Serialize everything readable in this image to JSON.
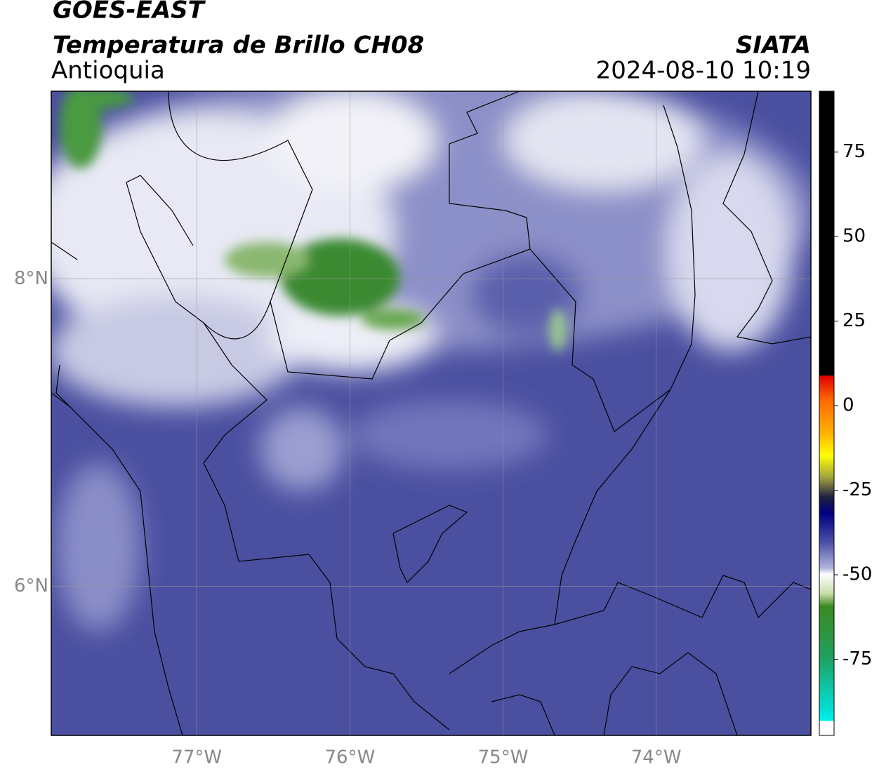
{
  "header": {
    "title": "GOES-EAST",
    "subtitle": "Temperatura de Brillo CH08",
    "region": "Antioquia",
    "source": "SIATA",
    "datetime": "2024-08-10 10:19"
  },
  "map": {
    "xlim": [
      -77.95,
      -72.99
    ],
    "ylim": [
      5.03,
      9.22
    ],
    "xticks": [
      {
        "value": -77,
        "label": "77°W"
      },
      {
        "value": -76,
        "label": "76°W"
      },
      {
        "value": -75,
        "label": "75°W"
      },
      {
        "value": -74,
        "label": "74°W"
      }
    ],
    "yticks": [
      {
        "value": 6,
        "label": "6°N"
      },
      {
        "value": 8,
        "label": "8°N"
      }
    ],
    "grid": true
  },
  "colorbar": {
    "lim": [
      -97.5,
      93
    ],
    "ticks": [
      75,
      50,
      25,
      0,
      -25,
      -50,
      -75
    ]
  }
}
